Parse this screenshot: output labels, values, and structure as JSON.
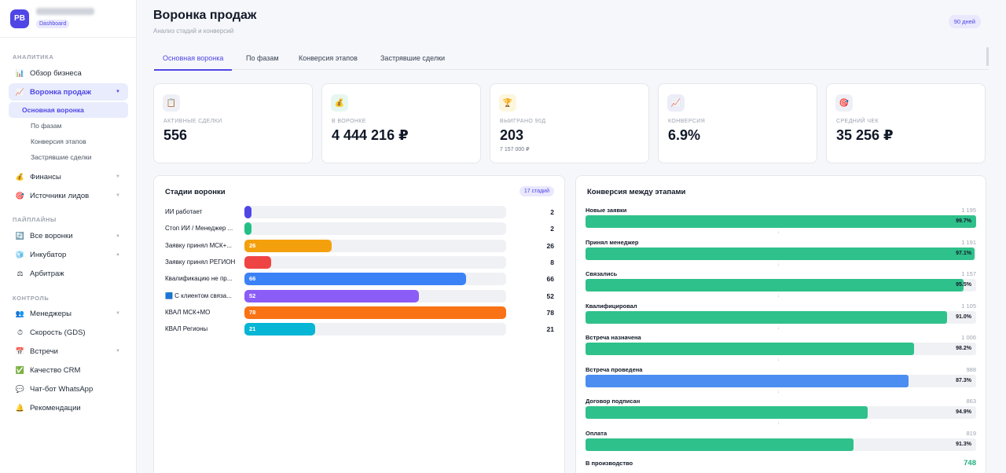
{
  "brand": {
    "initials": "PB",
    "badge": "Dashboard"
  },
  "sidebar": {
    "sections": [
      {
        "title": "АНАЛИТИКА"
      },
      {
        "title": "ПАЙПЛАЙНЫ"
      },
      {
        "title": "КОНТРОЛЬ"
      }
    ],
    "analytics": [
      {
        "label": "Обзор бизнеса",
        "icon": "📊"
      },
      {
        "label": "Воронка продаж",
        "icon": "📈"
      },
      {
        "label": "Финансы",
        "icon": "💰"
      },
      {
        "label": "Источники лидов",
        "icon": "🎯"
      }
    ],
    "funnel_sub": [
      "Основная воронка",
      "По фазам",
      "Конверсия этапов",
      "Застрявшие сделки"
    ],
    "pipelines": [
      {
        "label": "Все воронки",
        "icon": "🔄"
      },
      {
        "label": "Инкубатор",
        "icon": "🧊"
      },
      {
        "label": "Арбитраж",
        "icon": "⚖"
      }
    ],
    "control": [
      {
        "label": "Менеджеры",
        "icon": "👥"
      },
      {
        "label": "Скорость (GDS)",
        "icon": "⏱"
      },
      {
        "label": "Встречи",
        "icon": "📅"
      },
      {
        "label": "Качество CRM",
        "icon": "✅"
      },
      {
        "label": "Чат-бот WhatsApp",
        "icon": "💬"
      },
      {
        "label": "Рекомендации",
        "icon": "🔔"
      }
    ]
  },
  "header": {
    "title": "Воронка продаж",
    "subtitle": "Анализ стадий и конверсий",
    "days": "90 дней"
  },
  "tabs": [
    "Основная воронка",
    "По фазам",
    "Конверсия этапов",
    "Застрявшие сделки"
  ],
  "kpis": [
    {
      "label": "АКТИВНЫЕ СДЕЛКИ",
      "value": "556",
      "sub": "",
      "icon": "📋",
      "bg": "#eef0f6"
    },
    {
      "label": "В ВОРОНКЕ",
      "value": "4 444 216 ₽",
      "sub": "",
      "icon": "💰",
      "bg": "#e7f7ef"
    },
    {
      "label": "ВЫИГРАНО 90Д",
      "value": "203",
      "sub": "7 157 000 ₽",
      "icon": "🏆",
      "bg": "#fdf6df"
    },
    {
      "label": "КОНВЕРСИЯ",
      "value": "6.9%",
      "sub": "",
      "icon": "📈",
      "bg": "#ecedf8"
    },
    {
      "label": "СРЕДНИЙ ЧЕК",
      "value": "35 256 ₽",
      "sub": "",
      "icon": "🎯",
      "bg": "#eef0f6"
    }
  ],
  "stages": {
    "title": "Стадии воронки",
    "badge": "17 стадий",
    "max": 78,
    "rows": [
      {
        "label": "ИИ работает",
        "value": 2,
        "bar_label": "",
        "color": "#4f46e5"
      },
      {
        "label": "Стоп ИИ / Менеджер ...",
        "value": 2,
        "bar_label": "",
        "color": "#22c087"
      },
      {
        "label": "Заявку принял МСК+...",
        "value": 26,
        "bar_label": "26",
        "color": "#f4a00d"
      },
      {
        "label": "Заявку принял РЕГИОН",
        "value": 8,
        "bar_label": "",
        "color": "#ef4444"
      },
      {
        "label": "Квалификацию не пр...",
        "value": 66,
        "bar_label": "66",
        "color": "#3b82f6"
      },
      {
        "label": "🟦 С клиентом связа...",
        "value": 52,
        "bar_label": "52",
        "color": "#8b5cf6"
      },
      {
        "label": "КВАЛ МСК+МО",
        "value": 78,
        "bar_label": "78",
        "color": "#f97316"
      },
      {
        "label": "КВАЛ Регионы",
        "value": 21,
        "bar_label": "21",
        "color": "#06b6d4"
      }
    ]
  },
  "conversion": {
    "title": "Конверсия между этапами",
    "max": 1195,
    "arrow": "↓",
    "rows": [
      {
        "name": "Новые заявки",
        "count": 1195,
        "count_label": "1 195",
        "pct": "99.7%",
        "color": "#2fc18b"
      },
      {
        "name": "Принял менеджер",
        "count": 1191,
        "count_label": "1 191",
        "pct": "97.1%",
        "color": "#2fc18b"
      },
      {
        "name": "Связались",
        "count": 1157,
        "count_label": "1 157",
        "pct": "95.5%",
        "color": "#2fc18b"
      },
      {
        "name": "Квалифицировал",
        "count": 1105,
        "count_label": "1 105",
        "pct": "91.0%",
        "color": "#2fc18b"
      },
      {
        "name": "Встреча назначена",
        "count": 1006,
        "count_label": "1 006",
        "pct": "98.2%",
        "color": "#2fc18b"
      },
      {
        "name": "Встреча проведена",
        "count": 988,
        "count_label": "988",
        "pct": "87.3%",
        "color": "#4b8df0"
      },
      {
        "name": "Договор подписан",
        "count": 863,
        "count_label": "863",
        "pct": "94.9%",
        "color": "#2fc18b"
      },
      {
        "name": "Оплата",
        "count": 819,
        "count_label": "819",
        "pct": "91.3%",
        "color": "#2fc18b"
      }
    ],
    "final": {
      "name": "В производство",
      "value": "748"
    }
  },
  "chart_data": [
    {
      "type": "bar",
      "title": "Стадии воронки",
      "categories": [
        "ИИ работает",
        "Стоп ИИ / Менеджер ...",
        "Заявку принял МСК+...",
        "Заявку принял РЕГИОН",
        "Квалификацию не пр...",
        "С клиентом связа...",
        "КВАЛ МСК+МО",
        "КВАЛ Регионы"
      ],
      "values": [
        2,
        2,
        26,
        8,
        66,
        52,
        78,
        21
      ]
    },
    {
      "type": "bar",
      "title": "Конверсия между этапами",
      "categories": [
        "Новые заявки",
        "Принял менеджер",
        "Связались",
        "Квалифицировал",
        "Встреча назначена",
        "Встреча проведена",
        "Договор подписан",
        "Оплата"
      ],
      "values": [
        1195,
        1191,
        1157,
        1105,
        1006,
        988,
        863,
        819
      ]
    }
  ]
}
